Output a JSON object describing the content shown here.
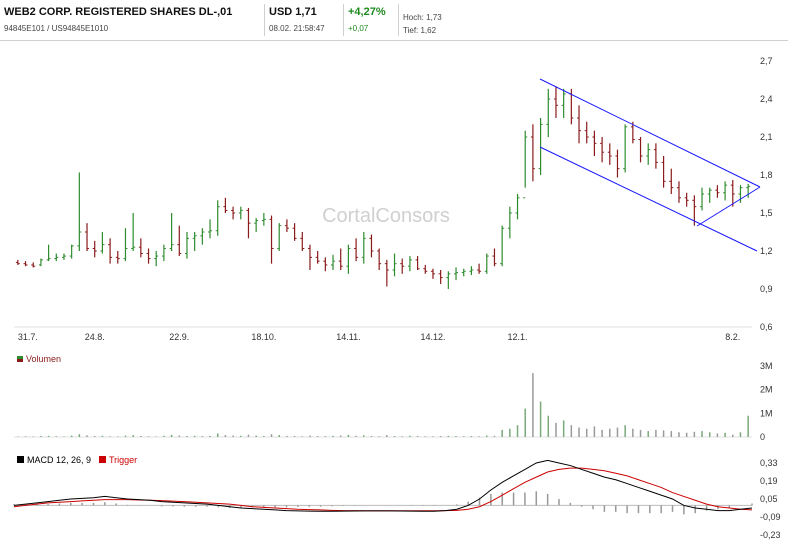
{
  "header": {
    "title": "WEB2 CORP. REGISTERED SHARES DL-,01",
    "ids": "94845E101 / US94845E1010",
    "price": "USD 1,71",
    "datetime": "08.02. 21:58:47",
    "change_pct": "+4,27%",
    "change_abs": "+0,07",
    "high": "Hoch: 1,73",
    "low": "Tief: 1,62"
  },
  "watermark": "CortalConsors",
  "colors": {
    "up": "#2e8b2e",
    "down": "#8b1a1a",
    "neutral": "#555555",
    "channel": "#1a1aff",
    "macd": "#000000",
    "trigger": "#cc0000",
    "histogram": "#999999"
  },
  "chart_data": [
    {
      "type": "ohlc",
      "x_ticks": [
        "31.7.",
        "24.8.",
        "22.9.",
        "18.10.",
        "14.11.",
        "14.12.",
        "12.1.",
        "8.2."
      ],
      "y_ticks": [
        "2,7",
        "2,4",
        "2,1",
        "1,8",
        "1,5",
        "1,2",
        "0,9",
        "0,6"
      ],
      "ylim": [
        0.6,
        2.7
      ],
      "series": [
        {
          "values": [
            [
              1.11,
              1.13,
              1.09,
              1.1
            ],
            [
              1.1,
              1.12,
              1.08,
              1.09
            ],
            [
              1.09,
              1.11,
              1.07,
              1.08
            ],
            [
              1.09,
              1.14,
              1.08,
              1.13
            ],
            [
              1.13,
              1.25,
              1.12,
              1.14
            ],
            [
              1.14,
              1.18,
              1.12,
              1.15
            ],
            [
              1.15,
              1.18,
              1.13,
              1.16
            ],
            [
              1.16,
              1.25,
              1.14,
              1.24
            ],
            [
              1.24,
              1.82,
              1.2,
              1.35
            ],
            [
              1.35,
              1.42,
              1.2,
              1.22
            ],
            [
              1.22,
              1.28,
              1.15,
              1.2
            ],
            [
              1.2,
              1.35,
              1.18,
              1.25
            ],
            [
              1.25,
              1.3,
              1.1,
              1.15
            ],
            [
              1.15,
              1.2,
              1.1,
              1.14
            ],
            [
              1.14,
              1.38,
              1.12,
              1.22
            ],
            [
              1.22,
              1.5,
              1.2,
              1.23
            ],
            [
              1.23,
              1.3,
              1.15,
              1.18
            ],
            [
              1.18,
              1.22,
              1.1,
              1.14
            ],
            [
              1.14,
              1.2,
              1.08,
              1.16
            ],
            [
              1.16,
              1.25,
              1.12,
              1.22
            ],
            [
              1.22,
              1.5,
              1.2,
              1.25
            ],
            [
              1.25,
              1.4,
              1.16,
              1.18
            ],
            [
              1.18,
              1.35,
              1.14,
              1.3
            ],
            [
              1.3,
              1.35,
              1.2,
              1.32
            ],
            [
              1.32,
              1.38,
              1.25,
              1.35
            ],
            [
              1.35,
              1.45,
              1.3,
              1.36
            ],
            [
              1.36,
              1.6,
              1.32,
              1.55
            ],
            [
              1.55,
              1.62,
              1.5,
              1.52
            ],
            [
              1.52,
              1.55,
              1.45,
              1.5
            ],
            [
              1.5,
              1.55,
              1.45,
              1.52
            ],
            [
              1.52,
              1.54,
              1.3,
              1.42
            ],
            [
              1.42,
              1.46,
              1.35,
              1.44
            ],
            [
              1.44,
              1.5,
              1.4,
              1.45
            ],
            [
              1.45,
              1.48,
              1.1,
              1.22
            ],
            [
              1.22,
              1.42,
              1.2,
              1.4
            ],
            [
              1.4,
              1.45,
              1.35,
              1.38
            ],
            [
              1.38,
              1.42,
              1.28,
              1.3
            ],
            [
              1.3,
              1.35,
              1.2,
              1.22
            ],
            [
              1.22,
              1.25,
              1.05,
              1.15
            ],
            [
              1.15,
              1.2,
              1.1,
              1.12
            ],
            [
              1.12,
              1.15,
              1.04,
              1.09
            ],
            [
              1.09,
              1.17,
              1.05,
              1.12
            ],
            [
              1.12,
              1.22,
              1.05,
              1.08
            ],
            [
              1.08,
              1.25,
              1.02,
              1.22
            ],
            [
              1.22,
              1.3,
              1.12,
              1.15
            ],
            [
              1.15,
              1.35,
              1.1,
              1.3
            ],
            [
              1.3,
              1.33,
              1.15,
              1.2
            ],
            [
              1.2,
              1.22,
              1.05,
              1.1
            ],
            [
              1.1,
              1.13,
              0.92,
              1.05
            ],
            [
              1.05,
              1.18,
              1.0,
              1.1
            ],
            [
              1.1,
              1.14,
              1.02,
              1.08
            ],
            [
              1.08,
              1.16,
              1.04,
              1.13
            ],
            [
              1.13,
              1.16,
              1.05,
              1.06
            ],
            [
              1.06,
              1.09,
              1.02,
              1.04
            ],
            [
              1.04,
              1.06,
              0.98,
              1.02
            ],
            [
              1.02,
              1.05,
              0.94,
              0.99
            ],
            [
              0.99,
              1.04,
              0.9,
              1.02
            ],
            [
              1.02,
              1.07,
              0.97,
              1.03
            ],
            [
              1.03,
              1.06,
              1.0,
              1.04
            ],
            [
              1.04,
              1.08,
              1.01,
              1.05
            ],
            [
              1.05,
              1.1,
              1.02,
              1.04
            ],
            [
              1.04,
              1.18,
              1.02,
              1.16
            ],
            [
              1.16,
              1.22,
              1.08,
              1.1
            ],
            [
              1.1,
              1.4,
              1.08,
              1.38
            ],
            [
              1.38,
              1.55,
              1.3,
              1.5
            ],
            [
              1.5,
              1.65,
              1.45,
              1.62
            ],
            [
              1.62,
              2.15,
              1.7,
              2.1
            ],
            [
              2.1,
              2.2,
              1.75,
              1.85
            ],
            [
              1.85,
              2.25,
              1.8,
              2.2
            ],
            [
              2.2,
              2.48,
              2.1,
              2.4
            ],
            [
              2.4,
              2.5,
              2.25,
              2.35
            ],
            [
              2.35,
              2.48,
              2.25,
              2.44
            ],
            [
              2.44,
              2.48,
              2.2,
              2.25
            ],
            [
              2.25,
              2.35,
              2.05,
              2.15
            ],
            [
              2.15,
              2.22,
              2.05,
              2.1
            ],
            [
              2.1,
              2.15,
              1.95,
              2.05
            ],
            [
              2.05,
              2.1,
              1.9,
              1.98
            ],
            [
              1.98,
              2.05,
              1.88,
              1.95
            ],
            [
              1.95,
              2.0,
              1.78,
              1.85
            ],
            [
              1.85,
              2.2,
              1.82,
              2.18
            ],
            [
              2.18,
              2.22,
              2.05,
              2.08
            ],
            [
              2.08,
              2.1,
              1.9,
              1.95
            ],
            [
              1.95,
              2.05,
              1.88,
              2.0
            ],
            [
              2.0,
              2.05,
              1.85,
              1.9
            ],
            [
              1.9,
              1.95,
              1.7,
              1.75
            ],
            [
              1.75,
              1.85,
              1.65,
              1.7
            ],
            [
              1.7,
              1.75,
              1.58,
              1.62
            ],
            [
              1.62,
              1.66,
              1.55,
              1.6
            ],
            [
              1.6,
              1.64,
              1.4,
              1.55
            ],
            [
              1.55,
              1.7,
              1.52,
              1.65
            ],
            [
              1.65,
              1.7,
              1.58,
              1.68
            ],
            [
              1.68,
              1.72,
              1.62,
              1.66
            ],
            [
              1.66,
              1.75,
              1.6,
              1.72
            ],
            [
              1.72,
              1.76,
              1.55,
              1.65
            ],
            [
              1.65,
              1.72,
              1.58,
              1.7
            ],
            [
              1.7,
              1.73,
              1.62,
              1.71
            ]
          ]
        }
      ]
    },
    {
      "type": "bar",
      "legend": "Volumen",
      "y_ticks": [
        "3M",
        "2M",
        "1M",
        "0"
      ],
      "ylim": [
        0,
        3000000
      ],
      "values": [
        20000,
        30000,
        25000,
        40000,
        50000,
        30000,
        20000,
        60000,
        120000,
        70000,
        40000,
        50000,
        30000,
        25000,
        60000,
        80000,
        40000,
        30000,
        20000,
        50000,
        90000,
        60000,
        40000,
        50000,
        35000,
        45000,
        150000,
        80000,
        60000,
        50000,
        100000,
        60000,
        40000,
        120000,
        80000,
        50000,
        40000,
        30000,
        60000,
        40000,
        35000,
        50000,
        60000,
        90000,
        50000,
        70000,
        40000,
        30000,
        80000,
        40000,
        30000,
        50000,
        40000,
        30000,
        30000,
        40000,
        50000,
        35000,
        30000,
        40000,
        30000,
        60000,
        50000,
        300000,
        350000,
        500000,
        1200000,
        2700000,
        1500000,
        900000,
        600000,
        700000,
        500000,
        400000,
        350000,
        450000,
        300000,
        350000,
        400000,
        500000,
        350000,
        300000,
        250000,
        300000,
        280000,
        250000,
        200000,
        180000,
        220000,
        250000,
        200000,
        150000,
        180000,
        100000,
        200000,
        900000
      ]
    },
    {
      "type": "line",
      "legend": [
        "MACD 12, 26, 9",
        "Trigger"
      ],
      "y_ticks": [
        "0,33",
        "0,19",
        "0,05",
        "-0,09",
        "-0,23"
      ],
      "ylim": [
        -0.23,
        0.33
      ],
      "macd": [
        0,
        0.01,
        0.02,
        0.03,
        0.04,
        0.05,
        0.055,
        0.06,
        0.07,
        0.06,
        0.05,
        0.045,
        0.04,
        0.03,
        0.025,
        0.02,
        0.015,
        0.01,
        0.0,
        -0.01,
        -0.02,
        -0.025,
        -0.03,
        -0.035,
        -0.04,
        -0.042,
        -0.044,
        -0.045,
        -0.045,
        -0.044,
        -0.043,
        -0.042,
        -0.042,
        -0.042,
        -0.043,
        -0.044,
        -0.045,
        -0.045,
        -0.04,
        -0.03,
        0.0,
        0.05,
        0.12,
        0.18,
        0.23,
        0.28,
        0.33,
        0.35,
        0.33,
        0.31,
        0.28,
        0.25,
        0.22,
        0.2,
        0.17,
        0.14,
        0.11,
        0.08,
        0.05,
        0.0,
        -0.02,
        -0.03,
        -0.04,
        -0.04,
        -0.03,
        -0.02
      ],
      "trigger": [
        -0.01,
        0.0,
        0.01,
        0.02,
        0.025,
        0.03,
        0.035,
        0.04,
        0.045,
        0.045,
        0.045,
        0.042,
        0.04,
        0.037,
        0.033,
        0.03,
        0.025,
        0.02,
        0.015,
        0.01,
        0.0,
        -0.01,
        -0.015,
        -0.02,
        -0.025,
        -0.03,
        -0.033,
        -0.035,
        -0.038,
        -0.04,
        -0.04,
        -0.041,
        -0.041,
        -0.041,
        -0.041,
        -0.041,
        -0.041,
        -0.041,
        -0.04,
        -0.038,
        -0.03,
        -0.01,
        0.03,
        0.08,
        0.13,
        0.18,
        0.22,
        0.26,
        0.28,
        0.29,
        0.29,
        0.28,
        0.27,
        0.25,
        0.23,
        0.2,
        0.17,
        0.14,
        0.1,
        0.07,
        0.04,
        0.01,
        -0.01,
        -0.02,
        -0.03,
        -0.035
      ]
    }
  ]
}
